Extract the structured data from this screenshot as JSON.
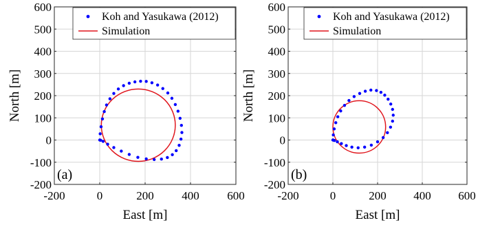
{
  "chart_data": [
    {
      "type": "scatter",
      "panel_label": "(a)",
      "xlabel": "East [m]",
      "ylabel": "North [m]",
      "xlim": [
        -200,
        600
      ],
      "ylim": [
        -200,
        600
      ],
      "xticks": [
        -200,
        0,
        200,
        400,
        600
      ],
      "yticks": [
        -200,
        -100,
        0,
        100,
        200,
        300,
        400,
        500,
        600
      ],
      "grid": true,
      "legend_position": "top-right",
      "series": [
        {
          "name": "Koh and Yasukawa (2012)",
          "kind": "markers",
          "color": "#0000ff",
          "x": [
            0,
            2,
            6,
            12,
            20,
            30,
            45,
            62,
            82,
            105,
            130,
            155,
            180,
            205,
            230,
            255,
            278,
            300,
            318,
            333,
            345,
            354,
            360,
            362,
            358,
            350,
            337,
            320,
            298,
            272,
            240,
            205,
            168,
            130,
            95,
            62,
            35,
            15,
            4
          ],
          "y": [
            0,
            28,
            60,
            95,
            128,
            158,
            186,
            210,
            230,
            245,
            256,
            262,
            265,
            264,
            258,
            248,
            232,
            212,
            188,
            160,
            130,
            98,
            66,
            34,
            4,
            -24,
            -48,
            -66,
            -79,
            -86,
            -88,
            -85,
            -78,
            -65,
            -50,
            -34,
            -19,
            -6,
            -1
          ]
        },
        {
          "name": "Simulation",
          "kind": "line",
          "color": "#e0141b",
          "circle": {
            "center": [
              170,
              67
            ],
            "radius": 163
          }
        }
      ]
    },
    {
      "type": "scatter",
      "panel_label": "(b)",
      "xlabel": "East [m]",
      "ylabel": "North [m]",
      "xlim": [
        -200,
        600
      ],
      "ylim": [
        -200,
        600
      ],
      "xticks": [
        -200,
        0,
        200,
        400,
        600
      ],
      "yticks": [
        -200,
        -100,
        0,
        100,
        200,
        300,
        400,
        500,
        600
      ],
      "grid": true,
      "legend_position": "top-right",
      "series": [
        {
          "name": "Koh and Yasukawa (2012)",
          "kind": "markers",
          "color": "#0000ff",
          "x": [
            0,
            2,
            6,
            13,
            22,
            35,
            52,
            72,
            95,
            120,
            145,
            170,
            195,
            215,
            232,
            247,
            259,
            267,
            270,
            267,
            258,
            244,
            225,
            200,
            172,
            142,
            113,
            85,
            60,
            38,
            20,
            7,
            1
          ],
          "y": [
            0,
            23,
            50,
            78,
            105,
            131,
            156,
            178,
            196,
            210,
            220,
            225,
            223,
            215,
            202,
            184,
            162,
            138,
            112,
            85,
            58,
            33,
            11,
            -8,
            -23,
            -32,
            -35,
            -32,
            -25,
            -16,
            -8,
            -2,
            0
          ]
        },
        {
          "name": "Simulation",
          "kind": "line",
          "color": "#e0141b",
          "circle": {
            "center": [
              118,
              59
            ],
            "radius": 118
          }
        }
      ]
    }
  ]
}
